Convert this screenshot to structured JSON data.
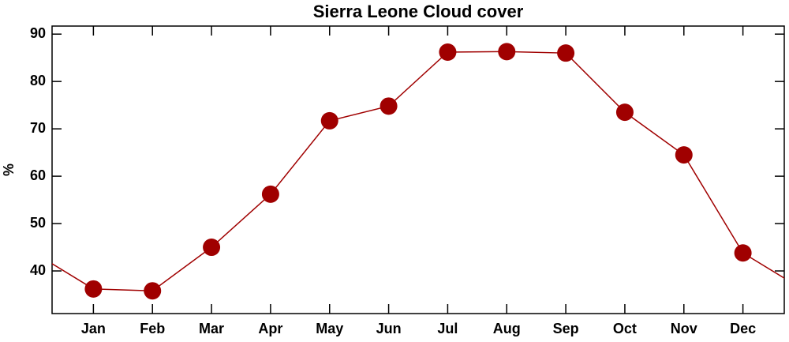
{
  "chart_data": {
    "type": "line",
    "title": "Sierra Leone Cloud cover",
    "ylabel": "%",
    "categories": [
      "Jan",
      "Feb",
      "Mar",
      "Apr",
      "May",
      "Jun",
      "Jul",
      "Aug",
      "Sep",
      "Oct",
      "Nov",
      "Dec"
    ],
    "series": [
      {
        "name": "Cloud cover",
        "color": "#a00000",
        "values": [
          36.2,
          35.8,
          45.0,
          56.2,
          71.7,
          74.8,
          86.2,
          86.3,
          86.0,
          73.5,
          64.5,
          43.8
        ]
      }
    ],
    "ylim": [
      31,
      91.7
    ],
    "yticks": [
      40,
      50,
      60,
      70,
      80,
      90
    ]
  }
}
